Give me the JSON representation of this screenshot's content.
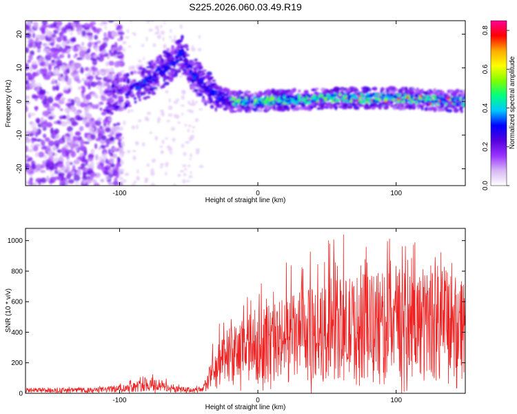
{
  "page": {
    "title": "S225.2026.060.03.49.R19"
  },
  "colors": {
    "snr_line": "#ee2222",
    "axis": "#000000",
    "background": "#ffffff"
  },
  "chart_data": [
    {
      "type": "heatmap",
      "name": "spectrogram",
      "title": "",
      "xlabel": "Height of straight line (km)",
      "ylabel": "Frequency (Hz)",
      "xlim": [
        -168,
        150
      ],
      "ylim": [
        -25,
        24
      ],
      "xticks": [
        -100,
        0,
        100
      ],
      "xtick_labels": [
        "-100",
        "0",
        "100"
      ],
      "yticks": [
        -20,
        -10,
        0,
        10,
        20
      ],
      "ytick_labels": [
        "-20",
        "-10",
        "0",
        "10",
        "20"
      ],
      "colorbar": {
        "label": "Normalized spectral amplitude",
        "range": [
          0.0,
          0.85
        ],
        "ticks": [
          0.0,
          0.2,
          0.4,
          0.6,
          0.8
        ],
        "tick_labels": [
          "0.0",
          "0.2",
          "0.4",
          "0.6",
          "0.8"
        ],
        "colormap": [
          "#ffffff",
          "#d8b8f4",
          "#9933ff",
          "#5500dd",
          "#0000ff",
          "#00c8ff",
          "#00ff80",
          "#80ff00",
          "#ffff00",
          "#ffaa00",
          "#ff0000",
          "#ff0099"
        ]
      },
      "ridge": {
        "x": [
          -170,
          -100,
          -80,
          -60,
          -55,
          -50,
          -40,
          -30,
          -20,
          0,
          50,
          100,
          150
        ],
        "y": [
          0,
          2,
          6,
          12,
          15,
          10,
          5,
          2,
          0,
          0,
          1,
          1,
          0
        ]
      }
    },
    {
      "type": "line",
      "name": "snr",
      "title": "",
      "xlabel": "Height of straight line (km)",
      "ylabel": "SNR (10 * v/v)",
      "xlim": [
        -168,
        150
      ],
      "ylim": [
        0,
        1080
      ],
      "xticks": [
        -100,
        0,
        100
      ],
      "xtick_labels": [
        "-100",
        "0",
        "100"
      ],
      "yticks": [
        0,
        200,
        400,
        600,
        800,
        1000
      ],
      "ytick_labels": [
        "0",
        "200",
        "400",
        "600",
        "800",
        "1000"
      ],
      "envelope": {
        "x": [
          -168,
          -120,
          -100,
          -90,
          -80,
          -70,
          -60,
          -40,
          -35,
          -30,
          -20,
          -10,
          0,
          10,
          20,
          30,
          40,
          50,
          60,
          70,
          80,
          90,
          100,
          110,
          120,
          130,
          140,
          150
        ],
        "mean": [
          20,
          20,
          30,
          40,
          60,
          50,
          25,
          20,
          100,
          170,
          230,
          280,
          310,
          330,
          350,
          370,
          380,
          400,
          420,
          430,
          440,
          440,
          450,
          460,
          460,
          470,
          470,
          460
        ],
        "peak": [
          40,
          45,
          70,
          110,
          140,
          120,
          60,
          50,
          300,
          450,
          500,
          640,
          700,
          790,
          860,
          870,
          950,
          1000,
          1080,
          980,
          960,
          1000,
          1080,
          1000,
          1040,
          960,
          900,
          820
        ]
      }
    }
  ]
}
